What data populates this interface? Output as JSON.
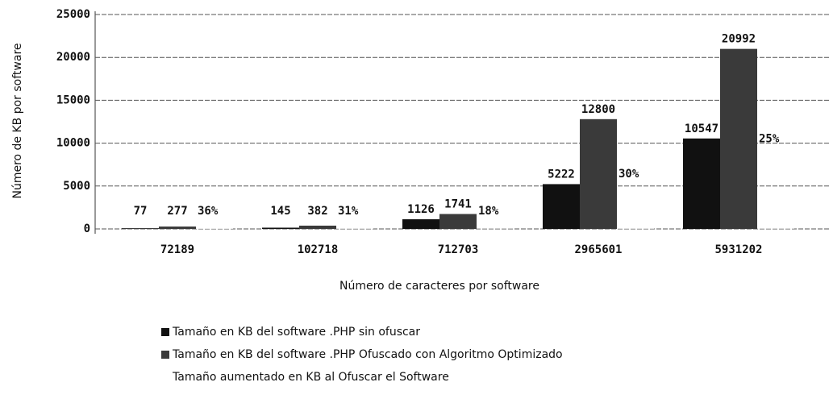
{
  "chart_data": {
    "type": "bar",
    "y_label": "Número de KB por software",
    "x_label": "Número de caracteres por software",
    "categories": [
      "72189",
      "102718",
      "712703",
      "2965601",
      "5931202"
    ],
    "series": [
      {
        "name": "Tamaño en KB del software .PHP sin ofuscar",
        "color": "#111111",
        "values": [
          77,
          145,
          1126,
          5222,
          10547
        ]
      },
      {
        "name": "Tamaño en KB del software .PHP  Ofuscado con Algoritmo Optimizado",
        "color": "#3a3a3a",
        "values": [
          277,
          382,
          1741,
          12800,
          20992
        ]
      },
      {
        "name": "Tamaño aumentado en KB al Ofuscar el Software",
        "color": "#ffffff",
        "values": [
          36,
          31,
          18,
          30,
          25
        ],
        "value_labels": [
          "36%",
          "31%",
          "18%",
          "30%",
          "25%"
        ]
      }
    ],
    "ylim": [
      0,
      25000
    ],
    "yticks": [
      0,
      5000,
      10000,
      15000,
      20000,
      25000
    ],
    "grid": true
  }
}
